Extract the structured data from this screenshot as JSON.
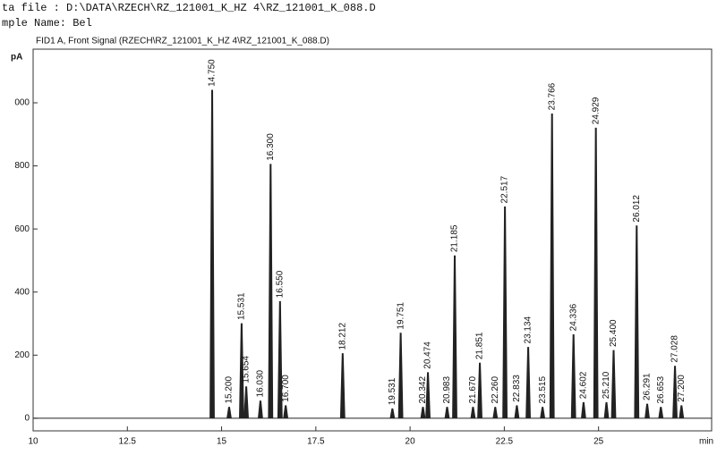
{
  "header": {
    "file_line": "ta file  : D:\\DATA\\RZECH\\RZ_121001_K_HZ 4\\RZ_121001_K_088.D",
    "sample_line": "mple Name: Bel"
  },
  "chart_data": {
    "type": "chromatogram",
    "title": "FID1 A, Front Signal (RZECH\\RZ_121001_K_HZ 4\\RZ_121001_K_088.D)",
    "y_label": "pA",
    "x_label": "min",
    "x": [
      14.75,
      15.2,
      15.531,
      15.654,
      16.03,
      16.3,
      16.55,
      16.7,
      18.212,
      19.531,
      19.751,
      20.342,
      20.474,
      20.983,
      21.185,
      21.67,
      21.851,
      22.26,
      22.517,
      22.833,
      23.134,
      23.515,
      23.766,
      24.336,
      24.602,
      24.929,
      25.21,
      25.4,
      26.012,
      26.291,
      26.653,
      27.028,
      27.2
    ],
    "x_labels": [
      "14.750",
      "15.200",
      "15.531",
      "15.654",
      "16.030",
      "16.300",
      "16.550",
      "16.700",
      "18.212",
      "19.531",
      "19.751",
      "20.342",
      "20.474",
      "20.983",
      "21.185",
      "21.670",
      "21.851",
      "22.260",
      "22.517",
      "22.833",
      "23.134",
      "23.515",
      "23.766",
      "24.336",
      "24.602",
      "24.929",
      "25.210",
      "25.400",
      "26.012",
      "26.291",
      "26.653",
      "27.028",
      "27.200"
    ],
    "values": [
      1040,
      35,
      300,
      100,
      55,
      805,
      370,
      40,
      205,
      30,
      270,
      35,
      145,
      35,
      515,
      35,
      175,
      35,
      670,
      40,
      225,
      35,
      965,
      265,
      50,
      920,
      50,
      215,
      610,
      45,
      35,
      165,
      40
    ],
    "color": "#222222",
    "xlim": [
      10,
      28
    ],
    "xticks": [
      10,
      12.5,
      15,
      17.5,
      20,
      22.5,
      25
    ],
    "ylim": [
      -40,
      1170
    ],
    "yticks": [
      0,
      200,
      400,
      600,
      800,
      {
        "value": 1000,
        "label": "000"
      }
    ]
  }
}
